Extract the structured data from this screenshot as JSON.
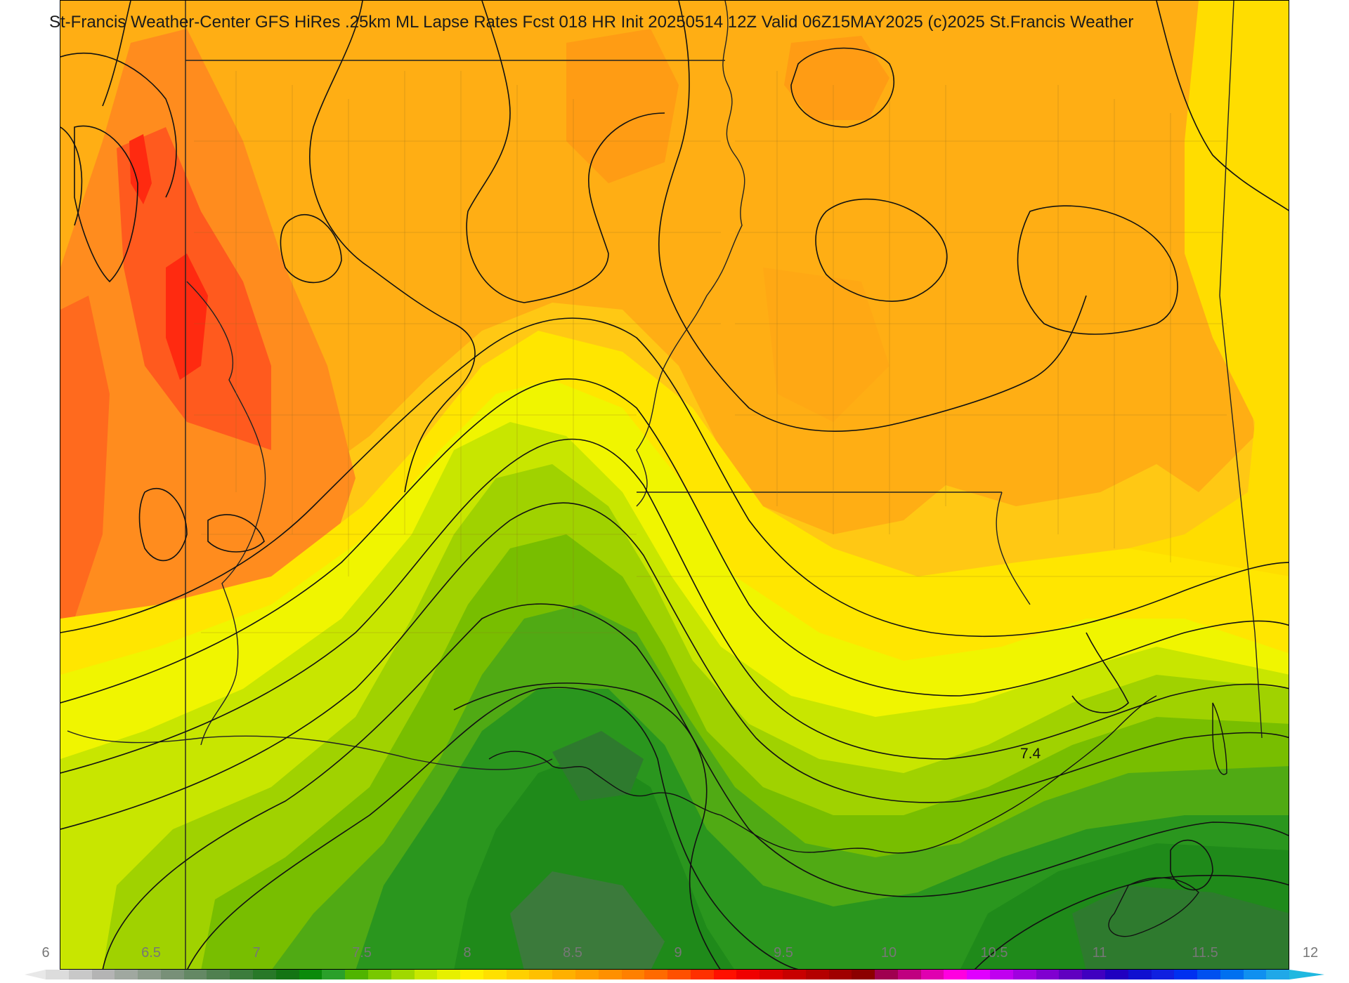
{
  "map": {
    "title": "St-Francis Weather-Center GFS HiRes .25km ML Lapse Rates  Fcst 018 HR Init 20250514 12Z  Valid 06Z15MAY2025    (c)2025 St.Francis Weather",
    "contour_label": "7.4",
    "field": "ML Lapse Rates",
    "model": "GFS HiRes",
    "colors": {
      "orange_red": "#ff5a1e",
      "orange": "#ff8c1e",
      "amber": "#ffae14",
      "gold": "#ffc814",
      "yellow": "#ffe600",
      "lime_yellow": "#f0f500",
      "yellow_green": "#c8e600",
      "light_green": "#a0d200",
      "green": "#64b400",
      "mid_green": "#3ca01e",
      "dark_green": "#1e8c14",
      "forest_green": "#2b7a2b",
      "gray_green": "#3f7a3f"
    }
  },
  "colorbar": {
    "ticks": [
      "6",
      "6.5",
      "7",
      "7.5",
      "8",
      "8.5",
      "9",
      "9.5",
      "10",
      "10.5",
      "11",
      "11.5",
      "12"
    ],
    "colors": [
      "#dcdcdc",
      "#c8c8c8",
      "#b4b4b4",
      "#a0a8a0",
      "#8c9c8c",
      "#789078",
      "#648864",
      "#508050",
      "#3c7c3c",
      "#287828",
      "#147414",
      "#0a8a0a",
      "#2aa02a",
      "#50b400",
      "#78c800",
      "#a0d800",
      "#c8e800",
      "#e6f000",
      "#fff000",
      "#ffe000",
      "#ffd000",
      "#ffc000",
      "#ffb000",
      "#ffa000",
      "#ff9000",
      "#ff8000",
      "#ff6a00",
      "#ff5000",
      "#ff3000",
      "#ff1000",
      "#f00000",
      "#dc0000",
      "#c80000",
      "#b40000",
      "#a00000",
      "#8c0000",
      "#a00050",
      "#c00080",
      "#e000b0",
      "#ff00e0",
      "#e000ff",
      "#c000f0",
      "#a000e0",
      "#8000d0",
      "#6000c0",
      "#4000c0",
      "#2000c0",
      "#1010d0",
      "#1020e0",
      "#0030f0",
      "#0050f0",
      "#0070f0",
      "#1090f0",
      "#20a8e8"
    ]
  }
}
